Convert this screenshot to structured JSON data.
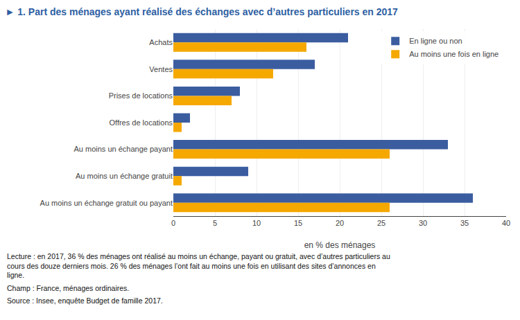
{
  "chart_data": {
    "type": "bar",
    "orientation": "horizontal",
    "title": "► 1. Part des ménages ayant réalisé des échanges avec d’autres particuliers en 2017",
    "categories": [
      "Achats",
      "Ventes",
      "Prises de locations",
      "Offres de locations",
      "Au moins un échange payant",
      "Au moins un échange gratuit",
      "Au moins un échange gratuit ou payant"
    ],
    "series": [
      {
        "name": "En ligne ou non",
        "color": "#3B5DA0",
        "values": [
          21,
          17,
          8,
          2,
          33,
          9,
          36
        ]
      },
      {
        "name": "Au moins une fois en ligne",
        "color": "#F5A800",
        "values": [
          16,
          12,
          7,
          1,
          26,
          1,
          26
        ]
      }
    ],
    "xlabel": "en % des ménages",
    "xlim": [
      0,
      40
    ],
    "xticks": [
      0,
      5,
      10,
      15,
      20,
      25,
      30,
      35,
      40
    ],
    "grid": true,
    "legend": "upper right",
    "annotations": [
      "Lecture : en 2017, 36 % des ménages ont réalisé au moins un échange, payant ou gratuit, avec d’autres particuliers au cours des douze derniers mois. 26 % des ménages l’ont fait au moins une fois en utilisant des sites d’annonces en ligne.",
      "Champ : France, ménages ordinaires.",
      "Source : Insee, enquête Budget de famille 2017."
    ]
  }
}
